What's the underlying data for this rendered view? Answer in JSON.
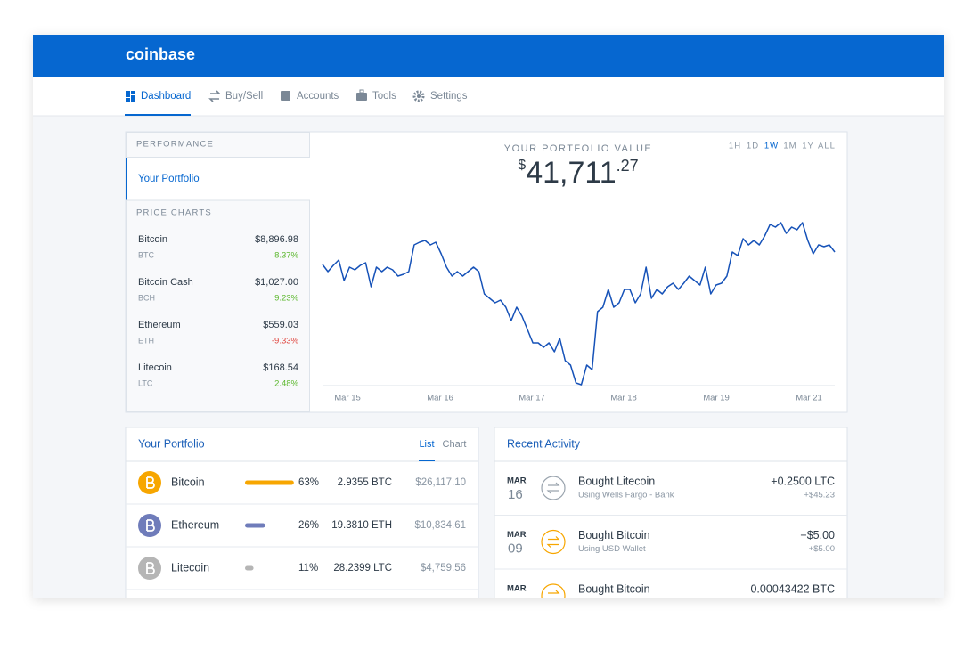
{
  "header": {
    "logo": "coinbase"
  },
  "nav": {
    "items": [
      "Dashboard",
      "Buy/Sell",
      "Accounts",
      "Tools",
      "Settings"
    ]
  },
  "sidebar": {
    "performance_label": "PERFORMANCE",
    "portfolio_link": "Your Portfolio",
    "price_charts_label": "PRICE CHARTS",
    "assets": [
      {
        "name": "Bitcoin",
        "symbol": "BTC",
        "price": "$8,896.98",
        "change": "8.37%"
      },
      {
        "name": "Bitcoin Cash",
        "symbol": "BCH",
        "price": "$1,027.00",
        "change": "9.23%"
      },
      {
        "name": "Ethereum",
        "symbol": "ETH",
        "price": "$559.03",
        "change": "-9.33%"
      },
      {
        "name": "Litecoin",
        "symbol": "LTC",
        "price": "$168.54",
        "change": "2.48%"
      }
    ]
  },
  "chart": {
    "label": "YOUR PORTFOLIO VALUE",
    "currency": "$",
    "whole": "41,711",
    "cents": ".27",
    "ranges": [
      "1H",
      "1D",
      "1W",
      "1M",
      "1Y",
      "ALL"
    ],
    "active_range": "1W",
    "x_labels": [
      "Mar 15",
      "Mar 16",
      "Mar 17",
      "Mar 18",
      "Mar 19",
      "Mar 21"
    ],
    "color": "#1652b8",
    "ylim": [
      0,
      200
    ],
    "values": [
      143,
      135,
      142,
      148,
      125,
      140,
      137,
      142,
      145,
      118,
      140,
      135,
      140,
      137,
      130,
      132,
      135,
      165,
      168,
      170,
      165,
      168,
      155,
      140,
      130,
      135,
      130,
      135,
      140,
      135,
      110,
      105,
      100,
      103,
      95,
      80,
      95,
      85,
      70,
      55,
      55,
      50,
      55,
      45,
      60,
      35,
      30,
      10,
      8,
      30,
      25,
      90,
      95,
      115,
      95,
      100,
      115,
      115,
      100,
      110,
      140,
      105,
      115,
      110,
      118,
      122,
      115,
      122,
      130,
      125,
      120,
      140,
      110,
      120,
      122,
      130,
      157,
      153,
      172,
      165,
      170,
      165,
      175,
      188,
      185,
      190,
      178,
      185,
      182,
      190,
      170,
      155,
      165,
      163,
      165,
      157
    ]
  },
  "portfolio": {
    "title": "Your Portfolio",
    "tabs": [
      "List",
      "Chart"
    ],
    "rows": [
      {
        "name": "Bitcoin",
        "share": 63,
        "share_label": "63%",
        "amount": "2.9355 BTC",
        "value": "$26,117.10",
        "color": "#f7a600"
      },
      {
        "name": "Ethereum",
        "share": 26,
        "share_label": "26%",
        "amount": "19.3810 ETH",
        "value": "$10,834.61",
        "color": "#6f7cba"
      },
      {
        "name": "Litecoin",
        "share": 11,
        "share_label": "11%",
        "amount": "28.2399 LTC",
        "value": "$4,759.56",
        "color": "#b5b5b5"
      }
    ]
  },
  "activity": {
    "title": "Recent Activity",
    "items": [
      {
        "month": "MAR",
        "day": "16",
        "title": "Bought Litecoin",
        "subtitle": "Using Wells Fargo - Bank",
        "amount": "+0.2500 LTC",
        "amount_sub": "+$45.23"
      },
      {
        "month": "MAR",
        "day": "09",
        "title": "Bought Bitcoin",
        "subtitle": "Using USD Wallet",
        "amount": "−$5.00",
        "amount_sub": "+$5.00"
      },
      {
        "month": "MAR",
        "title": "Bought Bitcoin",
        "amount": "0.00043422 BTC"
      }
    ]
  }
}
